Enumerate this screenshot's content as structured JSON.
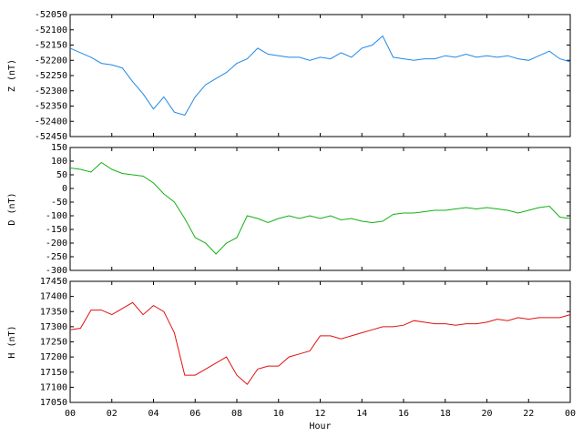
{
  "chart_data": [
    {
      "type": "line",
      "ylabel": "Z (nT)",
      "color": "#1e88e5",
      "x": [
        0,
        0.5,
        1,
        1.5,
        2,
        2.5,
        3,
        3.5,
        4,
        4.5,
        5,
        5.5,
        6,
        6.5,
        7,
        7.5,
        8,
        8.5,
        9,
        9.5,
        10,
        10.5,
        11,
        11.5,
        12,
        12.5,
        13,
        13.5,
        14,
        14.5,
        15,
        15.5,
        16,
        16.5,
        17,
        17.5,
        18,
        18.5,
        19,
        19.5,
        20,
        20.5,
        21,
        21.5,
        22,
        22.5,
        23,
        23.5,
        24
      ],
      "values": [
        -52160,
        -52175,
        -52190,
        -52210,
        -52215,
        -52225,
        -52270,
        -52310,
        -52360,
        -52320,
        -52370,
        -52380,
        -52320,
        -52280,
        -52260,
        -52240,
        -52210,
        -52195,
        -52160,
        -52180,
        -52185,
        -52190,
        -52190,
        -52200,
        -52190,
        -52195,
        -52175,
        -52190,
        -52160,
        -52150,
        -52120,
        -52190,
        -52195,
        -52200,
        -52195,
        -52195,
        -52185,
        -52190,
        -52180,
        -52190,
        -52185,
        -52190,
        -52185,
        -52195,
        -52200,
        -52185,
        -52170,
        -52195,
        -52205
      ],
      "xlim": [
        0,
        24
      ],
      "ylim": [
        -52450,
        -52050
      ],
      "yticks": [
        -52450,
        -52400,
        -52350,
        -52300,
        -52250,
        -52200,
        -52150,
        -52100,
        -52050
      ]
    },
    {
      "type": "line",
      "ylabel": "D (nT)",
      "color": "#12b012",
      "x": [
        0,
        0.5,
        1,
        1.5,
        2,
        2.5,
        3,
        3.5,
        4,
        4.5,
        5,
        5.5,
        6,
        6.5,
        7,
        7.5,
        8,
        8.5,
        9,
        9.5,
        10,
        10.5,
        11,
        11.5,
        12,
        12.5,
        13,
        13.5,
        14,
        14.5,
        15,
        15.5,
        16,
        16.5,
        17,
        17.5,
        18,
        18.5,
        19,
        19.5,
        20,
        20.5,
        21,
        21.5,
        22,
        22.5,
        23,
        23.5,
        24
      ],
      "values": [
        75,
        70,
        60,
        95,
        70,
        55,
        50,
        45,
        20,
        -20,
        -50,
        -110,
        -180,
        -200,
        -240,
        -200,
        -180,
        -100,
        -110,
        -125,
        -110,
        -100,
        -110,
        -100,
        -110,
        -100,
        -115,
        -110,
        -120,
        -125,
        -120,
        -95,
        -90,
        -90,
        -85,
        -80,
        -80,
        -75,
        -70,
        -75,
        -70,
        -75,
        -80,
        -90,
        -80,
        -70,
        -65,
        -105,
        -110
      ],
      "xlim": [
        0,
        24
      ],
      "ylim": [
        -300,
        150
      ],
      "yticks": [
        -300,
        -250,
        -200,
        -150,
        -100,
        -50,
        0,
        50,
        100,
        150
      ]
    },
    {
      "type": "line",
      "ylabel": "H (nT)",
      "xlabel": "Hour",
      "color": "#e01010",
      "x": [
        0,
        0.5,
        1,
        1.5,
        2,
        2.5,
        3,
        3.5,
        4,
        4.5,
        5,
        5.5,
        6,
        6.5,
        7,
        7.5,
        8,
        8.5,
        9,
        9.5,
        10,
        10.5,
        11,
        11.5,
        12,
        12.5,
        13,
        13.5,
        14,
        14.5,
        15,
        15.5,
        16,
        16.5,
        17,
        17.5,
        18,
        18.5,
        19,
        19.5,
        20,
        20.5,
        21,
        21.5,
        22,
        22.5,
        23,
        23.5,
        24
      ],
      "values": [
        17290,
        17295,
        17355,
        17355,
        17340,
        17360,
        17380,
        17340,
        17370,
        17350,
        17280,
        17140,
        17140,
        17160,
        17180,
        17200,
        17140,
        17110,
        17160,
        17170,
        17170,
        17200,
        17210,
        17220,
        17270,
        17270,
        17260,
        17270,
        17280,
        17290,
        17300,
        17300,
        17305,
        17320,
        17315,
        17310,
        17310,
        17305,
        17310,
        17310,
        17315,
        17325,
        17320,
        17330,
        17325,
        17330,
        17330,
        17330,
        17340
      ],
      "xlim": [
        0,
        24
      ],
      "ylim": [
        17050,
        17450
      ],
      "yticks": [
        17050,
        17100,
        17150,
        17200,
        17250,
        17300,
        17350,
        17400,
        17450
      ],
      "xticks": [
        {
          "value": 0,
          "label": "00"
        },
        {
          "value": 2,
          "label": "02"
        },
        {
          "value": 4,
          "label": "04"
        },
        {
          "value": 6,
          "label": "06"
        },
        {
          "value": 8,
          "label": "08"
        },
        10,
        12,
        14,
        16,
        18,
        20,
        22,
        {
          "value": 24,
          "label": "00"
        }
      ]
    }
  ]
}
